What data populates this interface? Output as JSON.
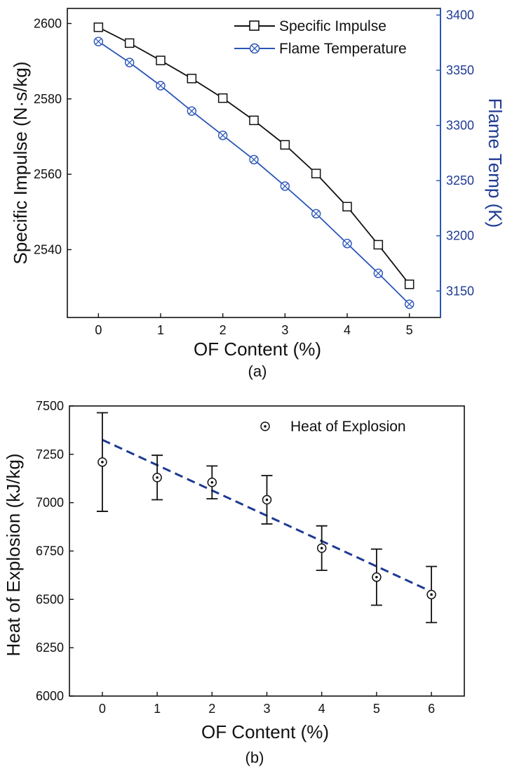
{
  "chart_data": [
    {
      "type": "line",
      "caption": "(a)",
      "xlabel": "OF Content (%)",
      "ylabel": "Specific Impulse (N·s/kg)",
      "y2label": "Flame Temp (K)",
      "xlim": [
        -0.5,
        5.5
      ],
      "ylim": [
        2522,
        2604
      ],
      "y2lim": [
        3126,
        3406
      ],
      "xticks": [
        0,
        1,
        2,
        3,
        4,
        5
      ],
      "yticks": [
        2540,
        2560,
        2580,
        2600
      ],
      "y2ticks": [
        3150,
        3200,
        3250,
        3300,
        3350,
        3400
      ],
      "legend_position": "top-right",
      "x": [
        0,
        0.5,
        1,
        1.5,
        2,
        2.5,
        3,
        3.5,
        4,
        4.5,
        5
      ],
      "series": [
        {
          "name": "Specific Impulse",
          "axis": "left",
          "color": "#111111",
          "marker": "open-square",
          "values": [
            2599,
            2594.8,
            2590.2,
            2585.4,
            2580.2,
            2574.3,
            2567.8,
            2560.2,
            2551.4,
            2541.3,
            2530.8
          ]
        },
        {
          "name": "Flame Temperature",
          "axis": "right",
          "color": "#2a55b8",
          "marker": "crossed-circle",
          "values": [
            3376,
            3357,
            3336,
            3313,
            3291,
            3269,
            3245,
            3220,
            3193,
            3166,
            3138
          ]
        }
      ]
    },
    {
      "type": "scatter",
      "caption": "(b)",
      "xlabel": "OF Content (%)",
      "ylabel": "Heat of Explosion (kJ/kg)",
      "xlim": [
        -0.6,
        6.6
      ],
      "ylim": [
        6000,
        7500
      ],
      "xticks": [
        0,
        1,
        2,
        3,
        4,
        5,
        6
      ],
      "yticks": [
        6000,
        6250,
        6500,
        6750,
        7000,
        7250,
        7500
      ],
      "legend_position": "top-right",
      "series": [
        {
          "name": "Heat of Explosion",
          "color": "#111111",
          "marker": "dotted-circle",
          "x": [
            0,
            1,
            2,
            3,
            4,
            5,
            6
          ],
          "values": [
            7210,
            7130,
            7105,
            7015,
            6765,
            6615,
            6525
          ],
          "error": [
            255,
            115,
            85,
            125,
            115,
            145,
            145
          ]
        }
      ],
      "trend_line": {
        "color": "#1f3a93",
        "style": "dashed",
        "x": [
          0,
          6
        ],
        "y": [
          7325,
          6540
        ]
      }
    }
  ]
}
